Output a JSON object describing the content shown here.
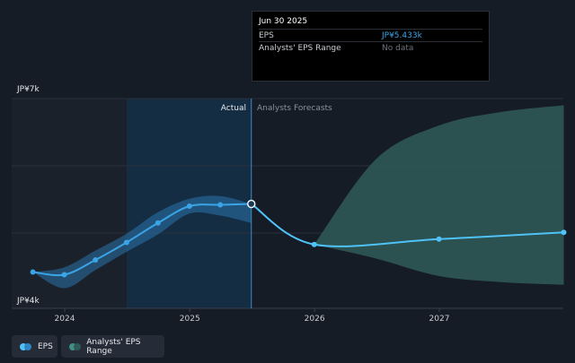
{
  "tooltip": {
    "date": "Jun 30 2025",
    "rows": [
      {
        "label": "EPS",
        "value": "JP¥5.433k"
      },
      {
        "label": "Analysts' EPS Range",
        "value": "No data"
      }
    ]
  },
  "labels": {
    "actual": "Actual",
    "forecast": "Analysts Forecasts"
  },
  "legend": {
    "eps": "EPS",
    "range": "Analysts' EPS Range"
  },
  "colors": {
    "eps": "#4fc3f7",
    "eps_past": "#3ba4e6",
    "range": "#2f5a58",
    "forecast_range": "#2f5a58",
    "background": "#161c26"
  },
  "chart_data": {
    "type": "line",
    "x_ticks": [
      "2024",
      "2025",
      "2026",
      "2027"
    ],
    "y_tick_labels": [
      "JP¥7k",
      "JP¥4k"
    ],
    "ylim": [
      4000,
      7000
    ],
    "xlim": [
      "2023-09-01",
      "2028-01-01"
    ],
    "divider": "2025-06-30",
    "highlight_start": "2024-07-01",
    "series": [
      {
        "name": "EPS",
        "x": [
          "2023-09-30",
          "2023-12-31",
          "2024-03-31",
          "2024-06-30",
          "2024-09-30",
          "2024-12-31",
          "2025-03-31",
          "2025-06-30",
          "2025-12-31",
          "2026-12-31",
          "2027-12-31"
        ],
        "y": [
          4420,
          4380,
          4600,
          4860,
          5150,
          5400,
          5420,
          5433,
          4830,
          4910,
          5010
        ],
        "markers": [
          true,
          true,
          true,
          true,
          true,
          true,
          true,
          true,
          true,
          true,
          true
        ]
      },
      {
        "name": "Analysts' EPS Range",
        "x": [
          "2023-09-30",
          "2023-12-31",
          "2024-03-31",
          "2024-06-30",
          "2024-09-30",
          "2024-12-31",
          "2025-03-31",
          "2025-06-30"
        ],
        "low": [
          4420,
          4180,
          4450,
          4720,
          4980,
          5290,
          5260,
          5150
        ],
        "high": [
          4420,
          4490,
          4740,
          4990,
          5310,
          5510,
          5550,
          5433
        ]
      },
      {
        "name": "Analysts' EPS Range",
        "x": [
          "2025-12-31",
          "2026-06-30",
          "2026-12-31",
          "2027-06-30",
          "2027-12-31"
        ],
        "low": [
          4830,
          4620,
          4360,
          4270,
          4230
        ],
        "high": [
          4830,
          6100,
          6600,
          6800,
          6900
        ]
      }
    ]
  }
}
